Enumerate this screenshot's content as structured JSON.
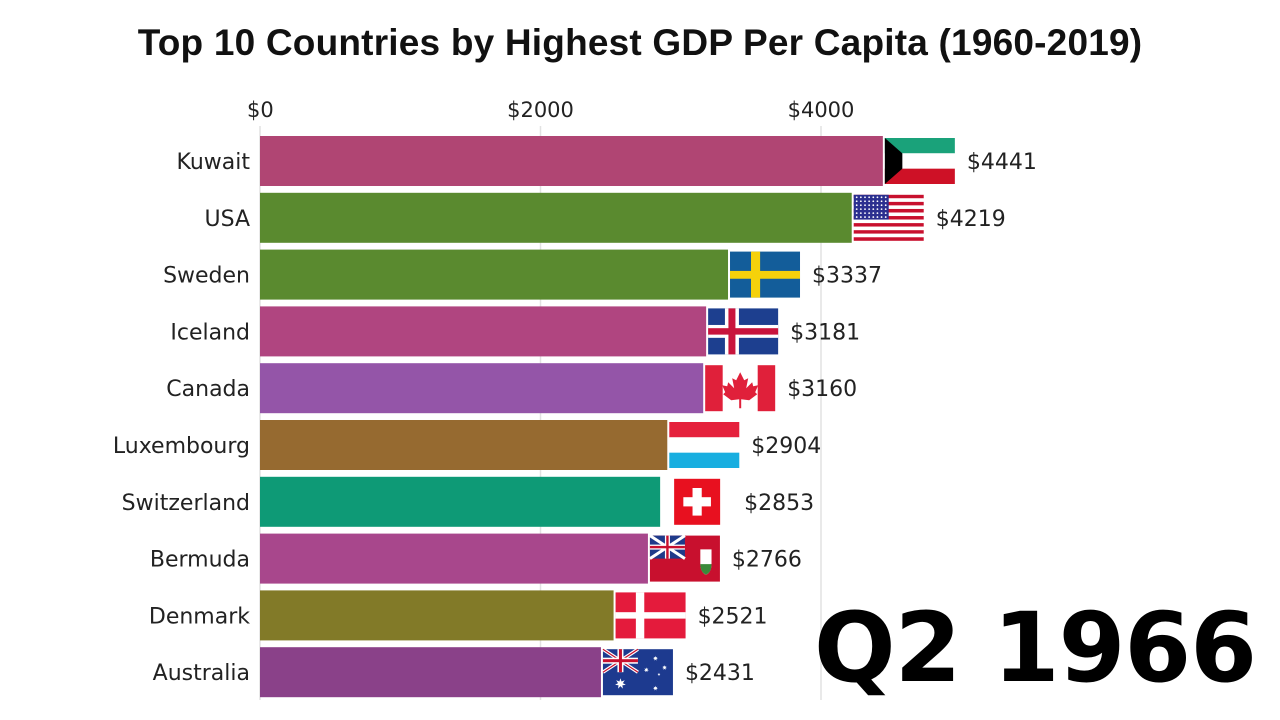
{
  "chart_data": {
    "type": "bar",
    "orientation": "horizontal",
    "title": "Top 10 Countries by Highest GDP Per Capita (1960-2019)",
    "period_label": "Q2 1966",
    "xlabel": "",
    "ylabel": "",
    "xlim": [
      0,
      4600
    ],
    "x_ticks": [
      0,
      2000,
      4000
    ],
    "x_tick_labels": [
      "$0",
      "$2000",
      "$4000"
    ],
    "grid": true,
    "legend": "none",
    "categories": [
      "Kuwait",
      "USA",
      "Sweden",
      "Iceland",
      "Canada",
      "Luxembourg",
      "Switzerland",
      "Bermuda",
      "Denmark",
      "Australia"
    ],
    "values": [
      4441,
      4219,
      3337,
      3181,
      3160,
      2904,
      2853,
      2766,
      2521,
      2431
    ],
    "value_labels": [
      "$4441",
      "$4219",
      "$3337",
      "$3181",
      "$3160",
      "$2904",
      "$2853",
      "$2766",
      "$2521",
      "$2431"
    ],
    "colors": [
      "#b04573",
      "#5a8a2f",
      "#5a8a2f",
      "#b04580",
      "#9455a8",
      "#966a30",
      "#0e9a76",
      "#a8478c",
      "#827a28",
      "#8a4189"
    ],
    "flags": [
      "kuwait-flag",
      "usa-flag",
      "sweden-flag",
      "iceland-flag",
      "canada-flag",
      "luxembourg-flag",
      "switzerland-flag",
      "bermuda-flag",
      "denmark-flag",
      "australia-flag"
    ]
  }
}
